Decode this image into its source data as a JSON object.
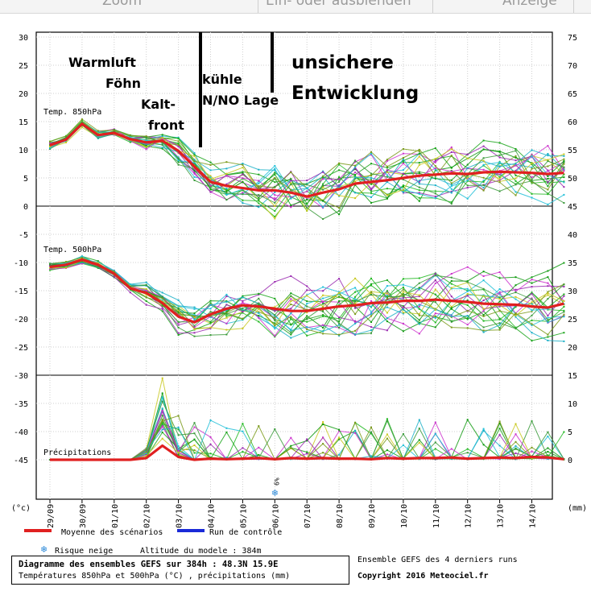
{
  "toolbar": {
    "items": [
      "Zoom",
      "Ein- oder ausblenden",
      "Anzeige"
    ]
  },
  "chart_data": {
    "type": "line",
    "title": "Diagramme des ensembles GEFS sur 384h : 48.3N 15.9E",
    "subtitle": "Températures 850hPa et 500hPa (°C) , précipitations (mm)",
    "ylabel_left": "(°c)",
    "ylabel_right": "(mm)",
    "x_tick_labels": [
      "29/09",
      "30/09",
      "01/10",
      "02/10",
      "03/10",
      "04/10",
      "05/10",
      "06/10",
      "07/10",
      "08/10",
      "09/10",
      "10/10",
      "11/10",
      "12/10",
      "13/10",
      "14/10"
    ],
    "y_left_ticks": [
      30,
      25,
      20,
      15,
      10,
      5,
      0,
      -5,
      -10,
      -15,
      -20,
      -25,
      -30,
      -35,
      -40,
      -45
    ],
    "y_right_ticks": [
      75,
      70,
      65,
      60,
      55,
      50,
      45,
      40,
      35,
      30,
      25,
      20,
      15,
      10,
      5,
      0
    ],
    "ylim_left": [
      -49.5,
      31.5
    ],
    "grid": true,
    "panel_labels": {
      "t850": "Temp. 850hPa",
      "t500": "Temp. 500hPa",
      "precip": "Précipitations"
    },
    "snow_marker": {
      "label": "6%",
      "date": "06/10"
    },
    "member_colors": [
      "#1aa51a",
      "#22b822",
      "#0f9a0f",
      "#9a2ab0",
      "#cc33cc",
      "#1cb0c8",
      "#22c0d8",
      "#c8c81e",
      "#7a9a1a",
      "#3a9a3a"
    ],
    "series": [
      {
        "name": "Moyenne des scénarios",
        "color": "#e02020",
        "role": "t850_mean",
        "x": [
          0,
          0.5,
          1,
          1.5,
          2,
          2.5,
          3,
          3.5,
          4,
          4.5,
          5,
          5.5,
          6,
          6.5,
          7,
          7.5,
          8,
          8.5,
          9,
          9.5,
          10,
          10.5,
          11,
          11.5,
          12,
          12.5,
          13,
          13.5,
          14,
          14.5,
          15,
          15.5,
          16
        ],
        "values": [
          10.8,
          11.8,
          14.6,
          12.6,
          13.0,
          11.9,
          11.3,
          11.6,
          9.8,
          7.0,
          4.3,
          3.6,
          3.2,
          2.8,
          2.8,
          2.4,
          1.7,
          2.4,
          3.0,
          4.0,
          4.3,
          4.6,
          5.0,
          5.4,
          5.6,
          5.8,
          5.7,
          6.0,
          6.1,
          6.0,
          5.9,
          5.7,
          5.9
        ]
      },
      {
        "name": "",
        "color": "#e02020",
        "role": "t500_mean",
        "x": [
          0,
          0.5,
          1,
          1.5,
          2,
          2.5,
          3,
          3.5,
          4,
          4.5,
          5,
          5.5,
          6,
          6.5,
          7,
          7.5,
          8,
          8.5,
          9,
          9.5,
          10,
          10.5,
          11,
          11.5,
          12,
          12.5,
          13,
          13.5,
          14,
          14.5,
          15,
          15.5,
          16
        ],
        "values": [
          -10.8,
          -10.4,
          -9.5,
          -10.4,
          -12.0,
          -14.6,
          -15.4,
          -17.2,
          -19.6,
          -20.6,
          -19.2,
          -18.2,
          -17.6,
          -17.8,
          -18.2,
          -18.6,
          -18.6,
          -18.2,
          -17.8,
          -17.6,
          -17.2,
          -17.1,
          -16.8,
          -16.8,
          -16.6,
          -16.8,
          -17.0,
          -17.3,
          -17.4,
          -17.5,
          -17.8,
          -18.0,
          -17.3
        ]
      },
      {
        "name": "",
        "color": "#e02020",
        "role": "precip_mean_mm",
        "x": [
          0,
          0.5,
          1,
          1.5,
          2,
          2.5,
          3,
          3.5,
          4,
          4.5,
          5,
          5.5,
          6,
          6.5,
          7,
          7.5,
          8,
          8.5,
          9,
          9.5,
          10,
          10.5,
          11,
          11.5,
          12,
          12.5,
          13,
          13.5,
          14,
          14.5,
          15,
          15.5,
          16
        ],
        "values": [
          0,
          0,
          0,
          0,
          0,
          0,
          0.3,
          2.5,
          0.5,
          0,
          0.2,
          0.1,
          0.2,
          0.3,
          0.1,
          0.3,
          0.2,
          0.3,
          0.2,
          0.2,
          0.1,
          0.3,
          0.2,
          0.3,
          0.3,
          0.4,
          0.2,
          0.3,
          0.4,
          0.3,
          0.5,
          0.4,
          0.1
        ]
      },
      {
        "name": "Run de contrôle",
        "color": "#1a2ad8",
        "role": "control",
        "x": [],
        "values": []
      }
    ],
    "ensemble_members": 20,
    "annotations": [
      {
        "text": "Warmluft",
        "size": "medium"
      },
      {
        "text": "Föhn",
        "size": "medium"
      },
      {
        "text": "Kalt-",
        "size": "medium"
      },
      {
        "text": "front",
        "size": "medium"
      },
      {
        "text": "kühle",
        "size": "medium"
      },
      {
        "text": "N/NO Lage",
        "size": "medium"
      },
      {
        "text": "unsichere",
        "size": "large"
      },
      {
        "text": "Entwicklung",
        "size": "large"
      }
    ],
    "legend": {
      "mean_label": "Moyenne des scénarios",
      "control_label": "Run de contrôle",
      "snow_label": "Risque neige",
      "altitude_label": "Altitude du modele : 384m"
    }
  },
  "footer": {
    "runs_note": "Ensemble GEFS des 4 derniers runs",
    "copyright": "Copyright 2016 Meteociel.fr"
  }
}
